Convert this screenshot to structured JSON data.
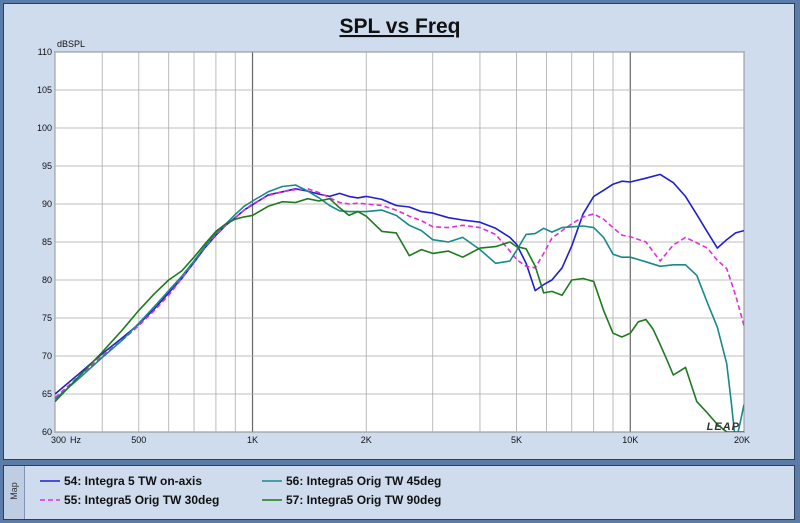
{
  "chart_data": {
    "type": "line",
    "title": "SPL vs Freq",
    "ylabel": "dBSPL",
    "x_scale": "log",
    "xlim": [
      300,
      20000
    ],
    "ylim": [
      60,
      110
    ],
    "y_ticks": [
      60,
      65,
      70,
      75,
      80,
      85,
      90,
      95,
      100,
      105,
      110
    ],
    "x_tick_labels": [
      {
        "value": 300,
        "label": "300"
      },
      {
        "value": 500,
        "label": "500"
      },
      {
        "value": 1000,
        "label": "1K"
      },
      {
        "value": 2000,
        "label": "2K"
      },
      {
        "value": 5000,
        "label": "5K"
      },
      {
        "value": 10000,
        "label": "10K"
      },
      {
        "value": 20000,
        "label": "20K"
      }
    ],
    "x_unit_label": "Hz",
    "grid": true,
    "legend_position": "bottom",
    "watermark": "LEAP",
    "series": [
      {
        "name": "54: Integra 5 TW on-axis",
        "color": "#1f1fd0",
        "x": [
          300,
          350,
          400,
          450,
          500,
          550,
          600,
          650,
          700,
          750,
          800,
          850,
          900,
          950,
          1000,
          1100,
          1200,
          1300,
          1400,
          1500,
          1600,
          1700,
          1800,
          1900,
          2000,
          2200,
          2400,
          2600,
          2800,
          3000,
          3300,
          3600,
          4000,
          4400,
          4800,
          5000,
          5300,
          5600,
          5900,
          6200,
          6600,
          7000,
          7500,
          8000,
          8500,
          9000,
          9500,
          10000,
          11000,
          12000,
          13000,
          14000,
          15000,
          16000,
          17000,
          18000,
          19000,
          20000
        ],
        "y": [
          65.0,
          67.8,
          70.3,
          72.3,
          74.2,
          76.2,
          78.3,
          80.2,
          82.3,
          84.3,
          85.9,
          87.2,
          88.2,
          89.2,
          89.9,
          91.2,
          91.6,
          92.0,
          91.7,
          91.3,
          91.0,
          91.4,
          91.0,
          90.8,
          91.0,
          90.6,
          89.8,
          89.6,
          89.0,
          88.8,
          88.2,
          87.9,
          87.6,
          86.8,
          85.6,
          84.7,
          82.2,
          78.6,
          79.4,
          80.0,
          81.6,
          84.5,
          88.7,
          91.0,
          91.8,
          92.6,
          93.0,
          92.9,
          93.4,
          93.9,
          92.8,
          91.0,
          88.6,
          86.3,
          84.2,
          85.3,
          86.2,
          86.5
        ]
      },
      {
        "name": "55: Integra5 Orig TW 30deg",
        "color": "#e02fd8",
        "dashed": true,
        "x": [
          300,
          350,
          400,
          450,
          500,
          550,
          600,
          650,
          700,
          750,
          800,
          850,
          900,
          950,
          1000,
          1100,
          1200,
          1300,
          1400,
          1500,
          1600,
          1700,
          1800,
          1900,
          2000,
          2200,
          2400,
          2600,
          2800,
          3000,
          3300,
          3600,
          4000,
          4400,
          4800,
          5000,
          5300,
          5600,
          5900,
          6200,
          6600,
          7000,
          7500,
          8000,
          8500,
          9000,
          9500,
          10000,
          11000,
          12000,
          13000,
          14000,
          15000,
          16000,
          17000,
          18000,
          19000,
          20000
        ],
        "y": [
          64.5,
          67.5,
          70.0,
          72.0,
          74.0,
          76.0,
          78.0,
          80.2,
          82.4,
          84.4,
          86.0,
          87.2,
          88.2,
          89.2,
          90.0,
          91.1,
          91.6,
          91.9,
          92.0,
          91.5,
          90.8,
          90.2,
          90.0,
          90.1,
          90.0,
          89.8,
          89.2,
          88.4,
          87.8,
          87.0,
          86.9,
          87.2,
          86.9,
          86.0,
          83.8,
          82.7,
          81.8,
          81.6,
          83.5,
          85.5,
          86.5,
          87.4,
          88.3,
          88.7,
          88.0,
          86.9,
          85.9,
          85.7,
          85.0,
          82.5,
          84.6,
          85.6,
          84.9,
          84.2,
          82.6,
          81.5,
          78.0,
          74.0
        ]
      },
      {
        "name": "56: Integra5 Orig TW 45deg",
        "color": "#178a8a",
        "x": [
          300,
          350,
          400,
          450,
          500,
          550,
          600,
          650,
          700,
          750,
          800,
          850,
          900,
          950,
          1000,
          1100,
          1200,
          1300,
          1400,
          1500,
          1600,
          1700,
          1800,
          1900,
          2000,
          2200,
          2400,
          2600,
          2800,
          3000,
          3300,
          3600,
          4000,
          4400,
          4800,
          5000,
          5300,
          5600,
          5900,
          6200,
          6600,
          7000,
          7500,
          8000,
          8500,
          9000,
          9500,
          10000,
          11000,
          12000,
          13000,
          14000,
          15000,
          16000,
          17000,
          18000,
          18500,
          19000,
          19500,
          20000
        ],
        "y": [
          64.3,
          67.2,
          69.8,
          72.0,
          74.3,
          76.5,
          78.6,
          80.5,
          82.5,
          84.5,
          86.2,
          87.4,
          88.6,
          89.7,
          90.4,
          91.6,
          92.3,
          92.5,
          91.7,
          90.8,
          89.8,
          89.1,
          89.0,
          89.0,
          89.0,
          89.2,
          88.5,
          87.2,
          86.5,
          85.3,
          85.0,
          85.6,
          84.0,
          82.2,
          82.5,
          83.9,
          86.0,
          86.1,
          86.8,
          86.3,
          86.9,
          87.0,
          87.1,
          86.9,
          85.6,
          83.4,
          83.0,
          83.0,
          82.4,
          81.8,
          82.0,
          82.0,
          80.6,
          77.0,
          73.8,
          69.0,
          64.0,
          58.5,
          61.0,
          63.6
        ]
      },
      {
        "name": "57: Integra5 Orig TW 90deg",
        "color": "#1d7a1d",
        "x": [
          300,
          350,
          400,
          450,
          500,
          550,
          600,
          650,
          700,
          750,
          800,
          850,
          900,
          950,
          1000,
          1100,
          1200,
          1300,
          1400,
          1500,
          1600,
          1700,
          1800,
          1900,
          2000,
          2200,
          2400,
          2600,
          2800,
          3000,
          3300,
          3600,
          4000,
          4400,
          4800,
          5000,
          5300,
          5600,
          5900,
          6200,
          6600,
          7000,
          7500,
          8000,
          8500,
          9000,
          9500,
          10000,
          10500,
          11000,
          11500,
          12000,
          12500,
          13000,
          13500,
          14000,
          15000,
          16000,
          17000,
          18000,
          19000,
          20000
        ],
        "y": [
          64.0,
          67.5,
          70.5,
          73.3,
          76.0,
          78.2,
          80.0,
          81.2,
          83.0,
          84.8,
          86.4,
          87.4,
          88.0,
          88.3,
          88.5,
          89.7,
          90.3,
          90.2,
          90.7,
          90.4,
          90.7,
          89.5,
          88.5,
          89.0,
          88.4,
          86.4,
          86.2,
          83.2,
          84.0,
          83.5,
          83.8,
          83.0,
          84.2,
          84.4,
          85.0,
          84.4,
          84.1,
          81.8,
          78.3,
          78.5,
          78.0,
          80.0,
          80.2,
          79.8,
          76.0,
          73.0,
          72.5,
          73.0,
          74.5,
          74.8,
          73.5,
          71.5,
          69.5,
          67.5,
          68.0,
          68.5,
          64.0,
          62.5,
          61.0,
          60.0,
          60.0,
          60.0
        ]
      }
    ]
  }
}
